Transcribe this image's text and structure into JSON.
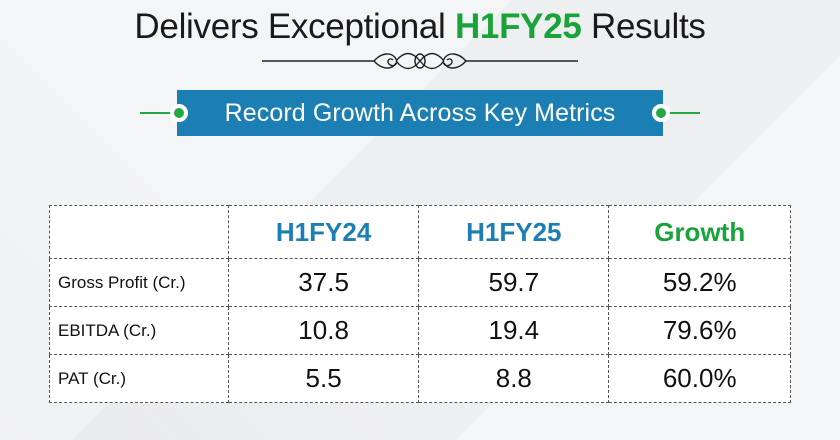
{
  "header": {
    "title_prefix": "Delivers Exceptional ",
    "title_highlight": "H1FY25",
    "title_suffix": " Results"
  },
  "banner": {
    "text": "Record Growth Across Key Metrics"
  },
  "table": {
    "columns": [
      "",
      "H1FY24",
      "H1FY25",
      "Growth"
    ],
    "rows": [
      {
        "label": "Gross Profit (Cr.)",
        "h1fy24": "37.5",
        "h1fy25": "59.7",
        "growth": "59.2%"
      },
      {
        "label": "EBITDA (Cr.)",
        "h1fy24": "10.8",
        "h1fy25": "19.4",
        "growth": "79.6%"
      },
      {
        "label": "PAT (Cr.)",
        "h1fy24": "5.5",
        "h1fy25": "8.8",
        "growth": "60.0%"
      }
    ]
  },
  "colors": {
    "accent_green": "#1aa33a",
    "banner_blue": "#1c7fb4"
  }
}
